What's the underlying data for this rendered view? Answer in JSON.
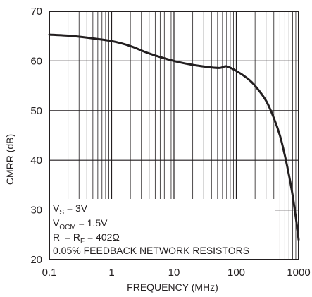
{
  "chart_data": {
    "type": "line",
    "xlabel": "FREQUENCY (MHz)",
    "ylabel": "CMRR (dB)",
    "x_scale": "log",
    "xlim": [
      0.1,
      1000
    ],
    "ylim": [
      20,
      70
    ],
    "x_ticks": [
      "0.1",
      "1",
      "10",
      "100",
      "1000"
    ],
    "y_ticks": [
      "20",
      "30",
      "40",
      "50",
      "60",
      "70"
    ],
    "grid": true,
    "series": [
      {
        "x": [
          0.1,
          0.2,
          0.4,
          1,
          2,
          4,
          10,
          20,
          40,
          55,
          70,
          100,
          150,
          200,
          300,
          400,
          500,
          600,
          700,
          800,
          900,
          1000
        ],
        "y": [
          65.3,
          65.1,
          64.7,
          64.0,
          63.0,
          61.5,
          60.0,
          59.2,
          58.7,
          58.6,
          58.9,
          58.0,
          56.5,
          55.0,
          52.0,
          48.5,
          45.0,
          41.0,
          37.0,
          33.0,
          28.5,
          24.0
        ]
      }
    ],
    "annotations": [
      {
        "main": "V",
        "sub": "S",
        "rest": " = 3V"
      },
      {
        "main": "V",
        "sub": "OCM",
        "rest": " = 1.5V"
      },
      {
        "main": "R",
        "sub": "I",
        "mid": " = R",
        "sub2": "F",
        "rest": " = 402Ω"
      },
      {
        "main": "0.05% FEEDBACK NETWORK RESISTORS"
      }
    ]
  }
}
